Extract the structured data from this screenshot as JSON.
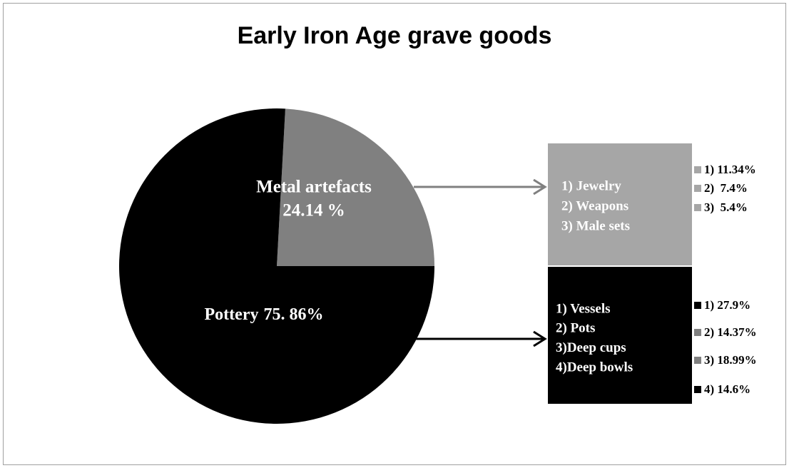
{
  "chart_data": {
    "type": "pie",
    "title": "Early Iron Age grave goods",
    "categories": [
      "Metal artefacts",
      "Pottery"
    ],
    "values": [
      24.14,
      75.86
    ],
    "value_labels": [
      "24.14 %",
      "75. 86%"
    ],
    "colors": [
      "#808080",
      "#000000"
    ],
    "breakouts": [
      {
        "items": [
          "1) Jewelry",
          "2) Weapons",
          "3) Male sets"
        ],
        "color": "#a6a6a6",
        "values": [
          11.34,
          7.4,
          5.4
        ],
        "value_labels": [
          "1) 11.34%",
          "2)  7.4%",
          "3)  5.4%"
        ],
        "colors": [
          "#a6a6a6",
          "#a6a6a6",
          "#a6a6a6"
        ]
      },
      {
        "items": [
          "1) Vessels",
          "2) Pots",
          "3)Deep cups",
          "4)Deep bowls"
        ],
        "color": "#000000",
        "values": [
          27.9,
          14.37,
          18.99,
          14.6
        ],
        "value_labels": [
          "1) 27.9%",
          "2) 14.37%",
          "3) 18.99%",
          "4) 14.6%"
        ],
        "colors": [
          "#000000",
          "#808080",
          "#808080",
          "#000000"
        ]
      }
    ]
  }
}
